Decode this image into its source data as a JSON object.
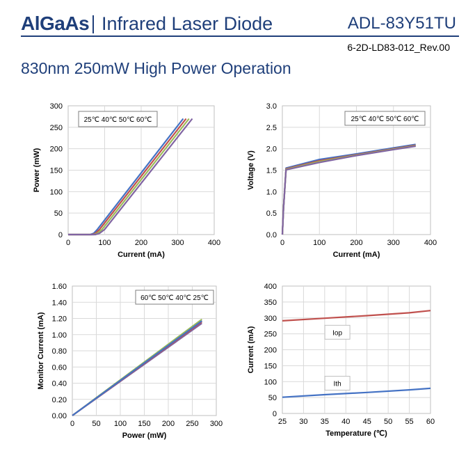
{
  "header": {
    "brand": "AlGaAs",
    "subtitle": "Infrared Laser Diode",
    "part_number": "ADL-83Y51TU",
    "revision": "6-2D-LD83-012_Rev.00",
    "heading": "830nm 250mW High Power Operation"
  },
  "colors": {
    "brand": "#1f3f7a",
    "c25": "#4472c4",
    "c40": "#c0504d",
    "c50": "#9bbb59",
    "c60": "#8064a2"
  },
  "chart_data": [
    {
      "type": "line",
      "xlabel": "Current (mA)",
      "ylabel": "Power (mW)",
      "xlim": [
        0,
        400
      ],
      "ylim": [
        0,
        300
      ],
      "xticks": [
        "0",
        "100",
        "200",
        "300",
        "400"
      ],
      "yticks": [
        "0",
        "50",
        "100",
        "150",
        "200",
        "250",
        "300"
      ],
      "grid": true,
      "legend_text": "25℃ 40℃ 50℃ 60℃",
      "legend_position": "top-left",
      "series": [
        {
          "name": "25℃",
          "color": "#4472c4",
          "x": [
            0,
            60,
            70,
            80,
            315
          ],
          "y": [
            0,
            0,
            3,
            12,
            270
          ]
        },
        {
          "name": "40℃",
          "color": "#c0504d",
          "x": [
            0,
            65,
            75,
            86,
            323
          ],
          "y": [
            0,
            0,
            3,
            12,
            270
          ]
        },
        {
          "name": "50℃",
          "color": "#9bbb59",
          "x": [
            0,
            70,
            80,
            93,
            331
          ],
          "y": [
            0,
            0,
            3,
            12,
            270
          ]
        },
        {
          "name": "60℃",
          "color": "#8064a2",
          "x": [
            0,
            75,
            86,
            100,
            340
          ],
          "y": [
            0,
            0,
            3,
            12,
            270
          ]
        }
      ]
    },
    {
      "type": "line",
      "xlabel": "Current (mA)",
      "ylabel": "Voltage (V)",
      "xlim": [
        0,
        400
      ],
      "ylim": [
        0,
        3
      ],
      "xticks": [
        "0",
        "100",
        "200",
        "300",
        "400"
      ],
      "yticks": [
        "0.0",
        "0.5",
        "1.0",
        "1.5",
        "2.0",
        "2.5",
        "3.0"
      ],
      "grid": true,
      "legend_text": "25℃ 40℃ 50℃ 60℃",
      "legend_position": "top-right",
      "series": [
        {
          "name": "25℃",
          "color": "#4472c4",
          "x": [
            0,
            3,
            10,
            100,
            200,
            300,
            360
          ],
          "y": [
            0,
            0.6,
            1.55,
            1.75,
            1.88,
            2.02,
            2.1
          ]
        },
        {
          "name": "40℃",
          "color": "#c0504d",
          "x": [
            0,
            3,
            10,
            100,
            200,
            300,
            360
          ],
          "y": [
            0,
            0.6,
            1.53,
            1.72,
            1.86,
            2.0,
            2.08
          ]
        },
        {
          "name": "50℃",
          "color": "#9bbb59",
          "x": [
            0,
            3,
            10,
            100,
            200,
            300,
            360
          ],
          "y": [
            0,
            0.6,
            1.52,
            1.7,
            1.85,
            1.99,
            2.07
          ]
        },
        {
          "name": "60℃",
          "color": "#8064a2",
          "x": [
            0,
            3,
            10,
            100,
            200,
            300,
            360
          ],
          "y": [
            0,
            0.6,
            1.51,
            1.68,
            1.84,
            1.98,
            2.06
          ]
        }
      ]
    },
    {
      "type": "line",
      "xlabel": "Power (mW)",
      "ylabel": "Monitor Current (mA)",
      "xlim": [
        0,
        300
      ],
      "ylim": [
        0,
        1.6
      ],
      "xticks": [
        "0",
        "50",
        "100",
        "150",
        "200",
        "250",
        "300"
      ],
      "yticks": [
        "0.00",
        "0.20",
        "0.40",
        "0.60",
        "0.80",
        "1.00",
        "1.20",
        "1.40",
        "1.60"
      ],
      "grid": true,
      "legend_text": "60℃ 50℃ 40℃ 25℃",
      "legend_position": "top-right",
      "series": [
        {
          "name": "60℃",
          "color": "#8064a2",
          "x": [
            0,
            270
          ],
          "y": [
            0,
            1.14
          ]
        },
        {
          "name": "50℃",
          "color": "#9bbb59",
          "x": [
            0,
            270
          ],
          "y": [
            0,
            1.19
          ]
        },
        {
          "name": "40℃",
          "color": "#c0504d",
          "x": [
            0,
            270
          ],
          "y": [
            0,
            1.16
          ]
        },
        {
          "name": "25℃",
          "color": "#4472c4",
          "x": [
            0,
            270
          ],
          "y": [
            0,
            1.17
          ]
        }
      ]
    },
    {
      "type": "line",
      "xlabel": "Temperature (℃)",
      "ylabel": "Current (mA)",
      "xlim": [
        25,
        60
      ],
      "ylim": [
        0,
        400
      ],
      "xticks": [
        "25",
        "30",
        "35",
        "40",
        "45",
        "50",
        "55",
        "60"
      ],
      "yticks": [
        "0",
        "50",
        "100",
        "150",
        "200",
        "250",
        "300",
        "350",
        "400"
      ],
      "grid": true,
      "series": [
        {
          "name": "Iop",
          "color": "#c0504d",
          "x": [
            25,
            35,
            45,
            55,
            60
          ],
          "y": [
            291,
            299,
            307,
            316,
            323
          ]
        },
        {
          "name": "Ith",
          "color": "#4472c4",
          "x": [
            25,
            35,
            45,
            55,
            60
          ],
          "y": [
            51,
            59,
            66,
            74,
            79
          ]
        }
      ],
      "annotations": [
        {
          "text": "Iop",
          "x": 38,
          "y": 255
        },
        {
          "text": "Ith",
          "x": 38,
          "y": 95
        }
      ]
    }
  ]
}
